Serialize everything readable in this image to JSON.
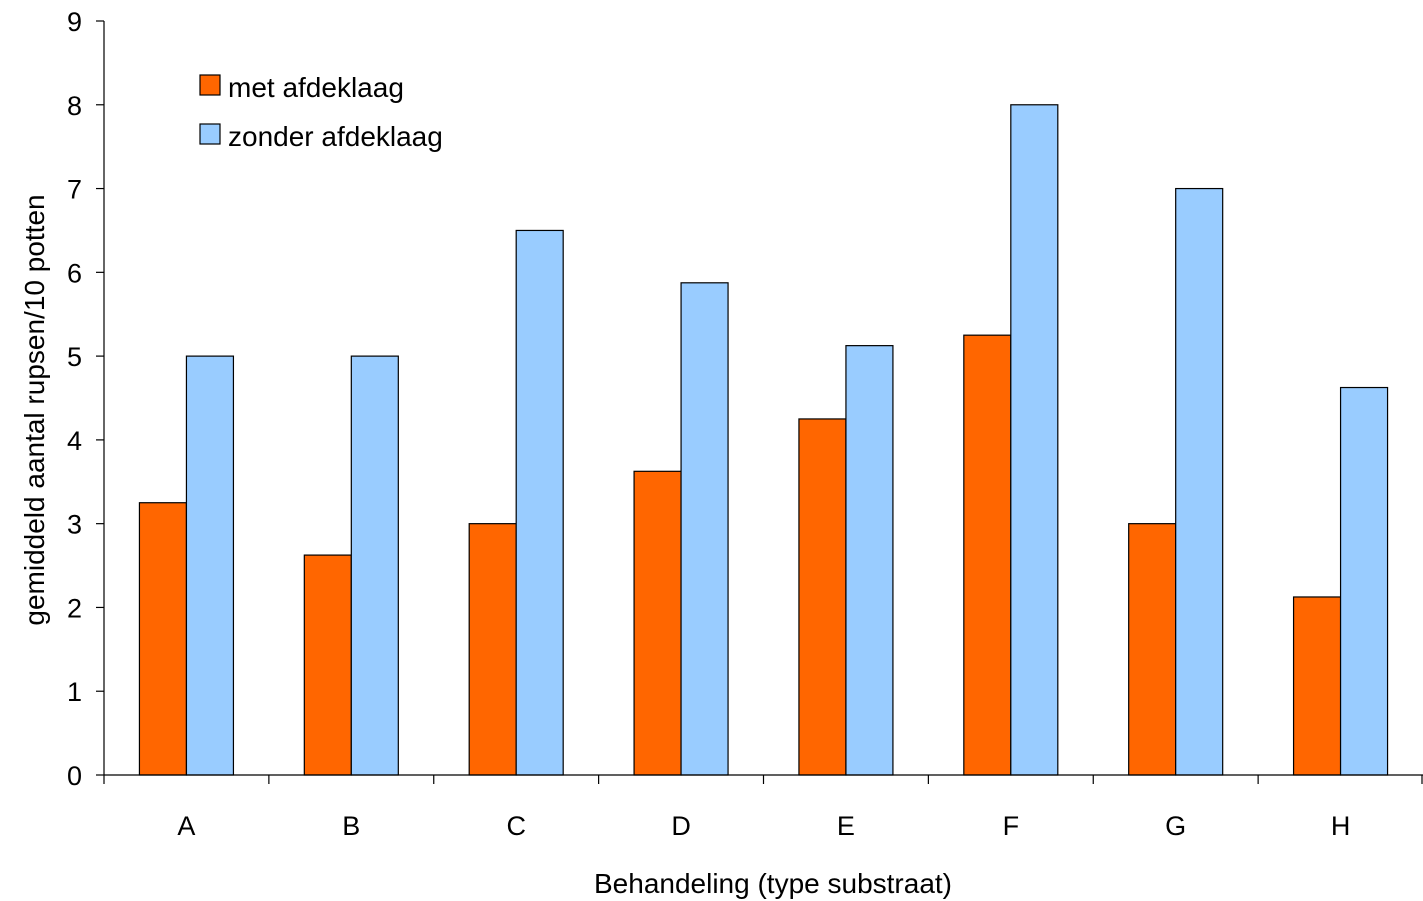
{
  "chart_data": {
    "type": "bar",
    "xlabel": "Behandeling (type substraat)",
    "ylabel": "gemiddeld aantal rupsen/10 potten",
    "ylim": [
      0,
      9
    ],
    "yticks": [
      "0",
      "1",
      "2",
      "3",
      "4",
      "5",
      "6",
      "7",
      "8",
      "9"
    ],
    "categories": [
      "A",
      "B",
      "C",
      "D",
      "E",
      "F",
      "G",
      "H"
    ],
    "series": [
      {
        "name": "met afdeklaag",
        "color": "#ff6600",
        "values": [
          3.25,
          2.625,
          3.0,
          3.625,
          4.25,
          5.25,
          3.0,
          2.125
        ]
      },
      {
        "name": "zonder afdeklaag",
        "color": "#99ccff",
        "values": [
          5.0,
          5.0,
          6.5,
          5.875,
          5.125,
          8.0,
          7.0,
          4.625
        ]
      }
    ],
    "grid": false,
    "legend_position": "top-left"
  }
}
